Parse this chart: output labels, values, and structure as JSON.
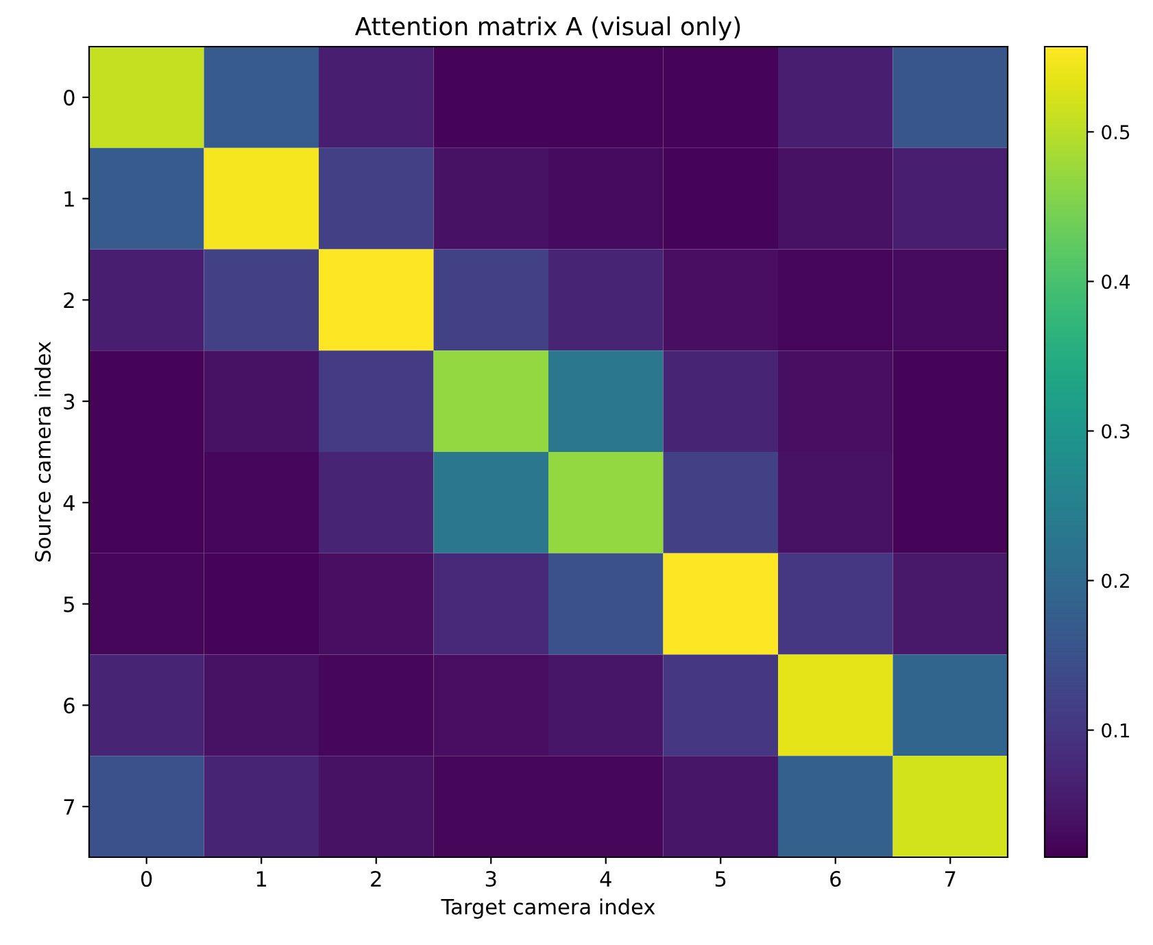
{
  "chart_data": {
    "type": "heatmap",
    "title": "Attention matrix A (visual only)",
    "xlabel": "Target camera index",
    "ylabel": "Source camera index",
    "categories": [
      "0",
      "1",
      "2",
      "3",
      "4",
      "5",
      "6",
      "7"
    ],
    "y_categories": [
      "0",
      "1",
      "2",
      "3",
      "4",
      "5",
      "6",
      "7"
    ],
    "cells": [
      [
        0.51,
        0.17,
        0.06,
        0.02,
        0.02,
        0.02,
        0.06,
        0.16
      ],
      [
        0.17,
        0.55,
        0.12,
        0.04,
        0.03,
        0.02,
        0.04,
        0.06
      ],
      [
        0.06,
        0.12,
        0.555,
        0.12,
        0.07,
        0.035,
        0.025,
        0.03
      ],
      [
        0.02,
        0.04,
        0.11,
        0.47,
        0.23,
        0.07,
        0.035,
        0.02
      ],
      [
        0.02,
        0.025,
        0.07,
        0.23,
        0.47,
        0.12,
        0.04,
        0.02
      ],
      [
        0.025,
        0.02,
        0.035,
        0.075,
        0.15,
        0.557,
        0.1,
        0.05
      ],
      [
        0.07,
        0.04,
        0.025,
        0.035,
        0.045,
        0.1,
        0.535,
        0.19
      ],
      [
        0.15,
        0.07,
        0.04,
        0.025,
        0.025,
        0.045,
        0.18,
        0.52
      ]
    ],
    "clim": [
      0.015,
      0.557
    ],
    "cticks": [
      0.1,
      0.2,
      0.3,
      0.4,
      0.5
    ]
  }
}
